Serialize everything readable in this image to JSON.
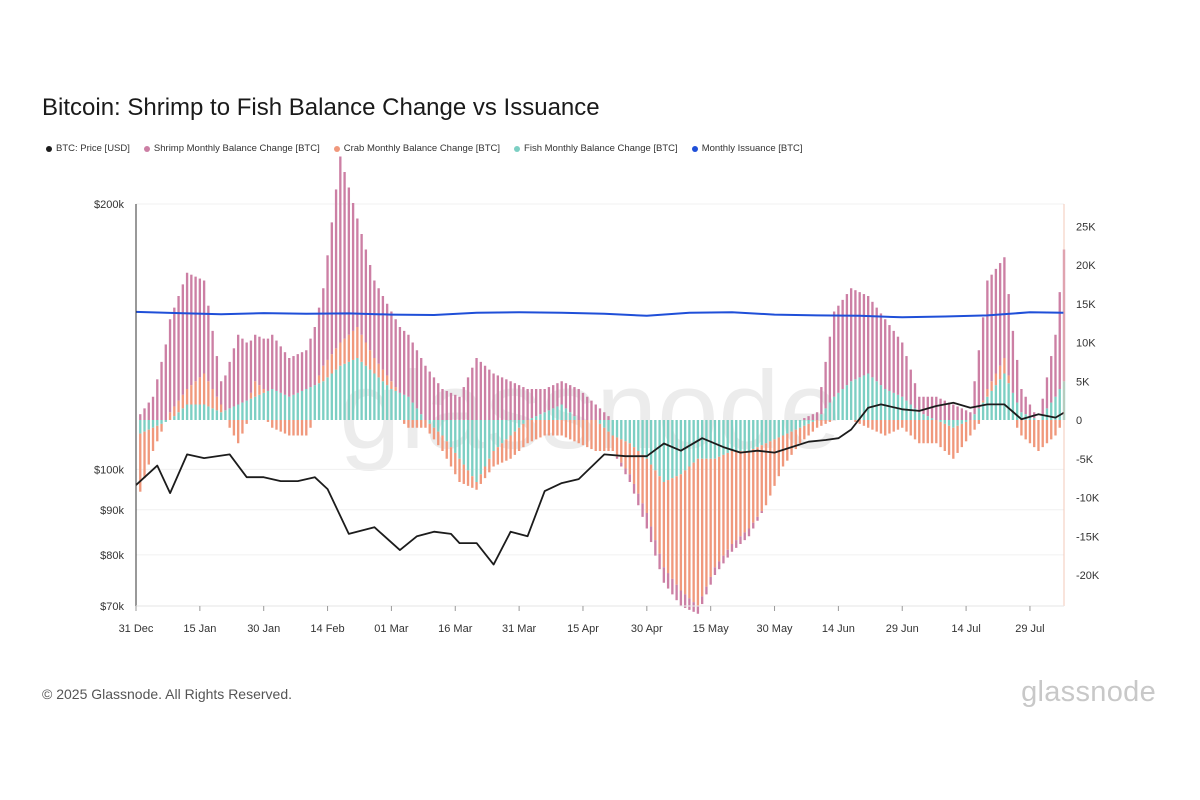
{
  "title": "Bitcoin: Shrimp to Fish Balance Change vs Issuance",
  "legend": [
    {
      "label": "BTC: Price [USD]",
      "color": "#1c1c1c"
    },
    {
      "label": "Shrimp Monthly Balance Change [BTC]",
      "color": "#cc7fa4"
    },
    {
      "label": "Crab Monthly Balance Change [BTC]",
      "color": "#f0987c"
    },
    {
      "label": "Fish Monthly Balance Change [BTC]",
      "color": "#7ccfc3"
    },
    {
      "label": "Monthly Issuance [BTC]",
      "color": "#1f4fd8"
    }
  ],
  "footer": {
    "copyright": "© 2025 Glassnode. All Rights Reserved.",
    "logo": "glassnode"
  },
  "watermark": "glassnode",
  "chart_data": {
    "type": "bar",
    "title": "Bitcoin: Shrimp to Fish Balance Change vs Issuance",
    "x_ticks": [
      "31 Dec",
      "15 Jan",
      "30 Jan",
      "14 Feb",
      "01 Mar",
      "16 Mar",
      "31 Mar",
      "15 Apr",
      "30 Apr",
      "15 May",
      "30 May",
      "14 Jun",
      "29 Jun",
      "14 Jul",
      "29 Jul"
    ],
    "y_left_ticks": [
      "$200k",
      "$100k",
      "$90k",
      "$80k",
      "$70k"
    ],
    "y_left_values": [
      200000,
      100000,
      90000,
      80000,
      70000
    ],
    "y_left_scale": "log",
    "y_left_range": [
      70000,
      200000
    ],
    "y_right_ticks": [
      "25K",
      "20K",
      "15K",
      "10K",
      "5K",
      "0",
      "-5K",
      "-10K",
      "-15K",
      "-20K"
    ],
    "y_right_values": [
      25000,
      20000,
      15000,
      10000,
      5000,
      0,
      -5000,
      -10000,
      -15000,
      -20000
    ],
    "y_right_range": [
      -24000,
      28000
    ],
    "x_range_days": [
      0,
      218
    ],
    "series": [
      {
        "name": "BTC: Price [USD]",
        "type": "line",
        "color": "#1c1c1c",
        "x": [
          0,
          5,
          8,
          12,
          16,
          22,
          26,
          30,
          34,
          38,
          42,
          45,
          50,
          56,
          62,
          66,
          70,
          74,
          76,
          80,
          84,
          88,
          92,
          96,
          100,
          104,
          110,
          115,
          120,
          124,
          128,
          133,
          138,
          142,
          146,
          150,
          154,
          158,
          162,
          165,
          168,
          172,
          175,
          180,
          184,
          188,
          192,
          196,
          200,
          204,
          208,
          212,
          216,
          218
        ],
        "y": [
          96000,
          101000,
          94000,
          104000,
          103000,
          104000,
          98000,
          98000,
          97000,
          97000,
          98000,
          95000,
          84500,
          86000,
          81000,
          84000,
          85000,
          84500,
          82500,
          82500,
          78000,
          85000,
          84000,
          94500,
          96500,
          97500,
          104000,
          103500,
          103500,
          107000,
          105000,
          108500,
          106000,
          104500,
          105000,
          104500,
          106000,
          107500,
          108000,
          108500,
          111000,
          117500,
          118500,
          117000,
          116500,
          118000,
          119000,
          117500,
          118500,
          118500,
          114000,
          115500,
          114500,
          116000
        ]
      },
      {
        "name": "Shrimp Monthly Balance Change [BTC]",
        "color": "#cc7fa4",
        "x": [
          0,
          4,
          8,
          12,
          16,
          20,
          24,
          28,
          32,
          36,
          40,
          44,
          48,
          52,
          56,
          60,
          64,
          68,
          72,
          76,
          80,
          84,
          88,
          92,
          96,
          100,
          104,
          108,
          112,
          116,
          120,
          124,
          128,
          132,
          136,
          140,
          144,
          148,
          152,
          156,
          160,
          164,
          168,
          172,
          176,
          180,
          184,
          188,
          192,
          196,
          200,
          204,
          208,
          212,
          216,
          218
        ],
        "y": [
          0,
          3000,
          12000,
          15000,
          12000,
          3000,
          9000,
          6000,
          7000,
          5000,
          5000,
          10000,
          24000,
          14000,
          10000,
          9000,
          8000,
          7000,
          4000,
          3000,
          8000,
          6000,
          5000,
          4000,
          3000,
          3000,
          4000,
          2000,
          0,
          -1000,
          -2000,
          -2000,
          -2000,
          -1000,
          -1000,
          -1000,
          -1000,
          0,
          0,
          0,
          1000,
          11000,
          12000,
          10000,
          9000,
          7000,
          2000,
          3000,
          2000,
          1000,
          14000,
          13000,
          3000,
          0,
          8000,
          17000
        ]
      },
      {
        "name": "Crab Monthly Balance Change [BTC]",
        "color": "#f0987c",
        "x": [
          0,
          4,
          8,
          12,
          16,
          20,
          24,
          28,
          32,
          36,
          40,
          44,
          48,
          52,
          56,
          60,
          64,
          68,
          72,
          76,
          80,
          84,
          88,
          92,
          96,
          100,
          104,
          108,
          112,
          116,
          120,
          124,
          128,
          132,
          136,
          140,
          144,
          148,
          152,
          156,
          160,
          164,
          168,
          172,
          176,
          180,
          184,
          188,
          192,
          196,
          200,
          204,
          208,
          212,
          216,
          218
        ],
        "y": [
          -9000,
          -3000,
          1000,
          2000,
          4000,
          1000,
          -3000,
          2000,
          -1000,
          -2000,
          -2000,
          2000,
          3000,
          4000,
          2000,
          1000,
          -1000,
          -1000,
          -2000,
          -3000,
          -1000,
          -2000,
          -3000,
          -3000,
          -2000,
          -2000,
          -3000,
          -4000,
          -2000,
          -4000,
          -7000,
          -11000,
          -15000,
          -19000,
          -14000,
          -12000,
          -10000,
          -8000,
          -4000,
          -2000,
          -1000,
          0,
          0,
          -1000,
          -2000,
          -1000,
          -3000,
          -3000,
          -4000,
          -2000,
          1000,
          2000,
          -2000,
          -4000,
          -2000,
          0
        ]
      },
      {
        "name": "Fish Monthly Balance Change [BTC]",
        "color": "#7ccfc3",
        "x": [
          0,
          4,
          8,
          12,
          16,
          20,
          24,
          28,
          32,
          36,
          40,
          44,
          48,
          52,
          56,
          60,
          64,
          68,
          72,
          76,
          80,
          84,
          88,
          92,
          96,
          100,
          104,
          108,
          112,
          116,
          120,
          124,
          128,
          132,
          136,
          140,
          144,
          148,
          152,
          156,
          160,
          164,
          168,
          172,
          176,
          180,
          184,
          188,
          192,
          196,
          200,
          204,
          208,
          212,
          216,
          218
        ],
        "y": [
          -2000,
          -1000,
          0,
          2000,
          2000,
          1000,
          2000,
          3000,
          4000,
          3000,
          4000,
          5000,
          7000,
          8000,
          6000,
          4000,
          3000,
          0,
          -2000,
          -5000,
          -8000,
          -4000,
          -2000,
          0,
          1000,
          2000,
          0,
          0,
          -2000,
          -3000,
          -5000,
          -8000,
          -7000,
          -5000,
          -5000,
          -4000,
          -4000,
          -3000,
          -2000,
          -1000,
          0,
          3000,
          5000,
          6000,
          4000,
          3000,
          1000,
          0,
          -1000,
          0,
          3000,
          6000,
          1000,
          0,
          3000,
          5000
        ]
      },
      {
        "name": "Monthly Issuance [BTC]",
        "type": "line",
        "color": "#1f4fd8",
        "x": [
          0,
          10,
          20,
          30,
          40,
          50,
          60,
          70,
          80,
          90,
          100,
          110,
          120,
          130,
          140,
          150,
          160,
          170,
          180,
          190,
          200,
          210,
          218
        ],
        "y": [
          13950,
          13800,
          13650,
          13800,
          13700,
          13750,
          13600,
          13550,
          13850,
          13900,
          13850,
          13700,
          13450,
          13850,
          13900,
          13600,
          13500,
          13450,
          13250,
          13350,
          13500,
          13900,
          13850
        ]
      }
    ]
  }
}
